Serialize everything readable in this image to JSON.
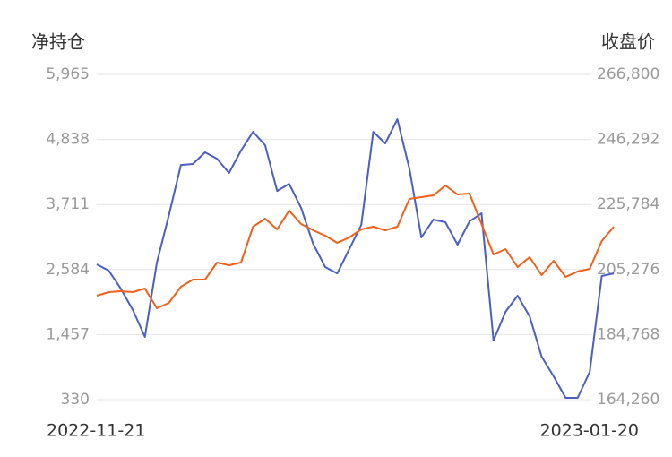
{
  "chart_data": {
    "type": "line",
    "y_title": "净持仓",
    "y2_title": "收盘价",
    "categories": [
      "2022-11-21",
      null,
      null,
      null,
      null,
      null,
      null,
      null,
      null,
      null,
      null,
      null,
      null,
      null,
      null,
      null,
      null,
      null,
      null,
      null,
      null,
      null,
      null,
      null,
      null,
      null,
      null,
      null,
      null,
      null,
      null,
      null,
      null,
      null,
      null,
      null,
      null,
      null,
      null,
      null,
      null,
      null,
      null,
      "2023-01-20"
    ],
    "series": [
      {
        "color": "#4a5fc1",
        "values": [
          2674,
          2565,
          2254,
          1882,
          1416,
          2705,
          3527,
          4396,
          4412,
          4614,
          4505,
          4257,
          4645,
          4970,
          4738,
          3946,
          4070,
          3651,
          3030,
          2627,
          2518,
          2937,
          3356,
          4970,
          4769,
          5188,
          4334,
          3139,
          3450,
          3403,
          3015,
          3418,
          3558,
          1354,
          1851,
          2130,
          1773,
          1075,
          733,
          361,
          361,
          811,
          2472,
          2518
        ]
      },
      {
        "color": "#f0601a",
        "axis": "y2",
        "values": [
          197030,
          198160,
          198443,
          198160,
          199290,
          193075,
          194770,
          199855,
          202115,
          202115,
          207483,
          206635,
          207483,
          218783,
          221325,
          217935,
          223868,
          219630,
          217653,
          215958,
          213698,
          215393,
          217935,
          218783,
          217653,
          218783,
          227540,
          228105,
          228670,
          231778,
          228953,
          229235,
          219630,
          210025,
          211720,
          206070,
          209178,
          203528,
          208048,
          202963,
          204658,
          205505,
          214263,
          218783
        ]
      }
    ],
    "ylim": [
      330,
      5965
    ],
    "yticks": [
      330,
      {
        "value": 1457,
        "label": "1,457"
      },
      {
        "value": 2584,
        "label": "2,584"
      },
      {
        "value": 3711,
        "label": "3,711"
      },
      {
        "value": 4838,
        "label": "4,838"
      },
      {
        "value": 5965,
        "label": "5,965"
      }
    ],
    "y2lim": [
      164260,
      266800
    ],
    "y2ticks": [
      {
        "value": 164260,
        "label": "164,260"
      },
      {
        "value": 184768,
        "label": "184,768"
      },
      {
        "value": 205276,
        "label": "205,276"
      },
      {
        "value": 225784,
        "label": "225,784"
      },
      {
        "value": 246292,
        "label": "246,292"
      },
      {
        "value": 266800,
        "label": "266,800"
      }
    ],
    "grid": true
  }
}
